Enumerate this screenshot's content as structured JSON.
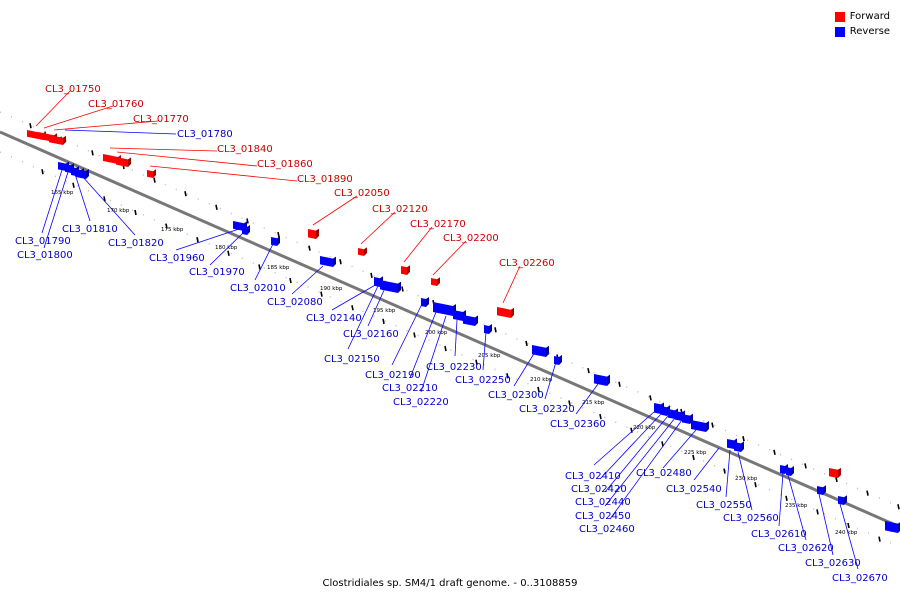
{
  "legend": {
    "forward": {
      "label": "Forward",
      "color": "#ff0000"
    },
    "reverse": {
      "label": "Reverse",
      "color": "#0000ff"
    }
  },
  "caption": "Clostridiales sp. SM4/1 draft genome. - 0..3108859",
  "ticks": [
    "165 kbp",
    "170 kbp",
    "175 kbp",
    "180 kbp",
    "185 kbp",
    "190 kbp",
    "195 kbp",
    "200 kbp",
    "205 kbp",
    "210 kbp",
    "215 kbp",
    "220 kbp",
    "225 kbp",
    "230 kbp",
    "235 kbp",
    "240 kbp"
  ],
  "forward_genes": [
    "CL3_01750",
    "CL3_01760",
    "CL3_01770",
    "CL3_01840",
    "CL3_01860",
    "CL3_01890",
    "CL3_02050",
    "CL3_02120",
    "CL3_02170",
    "CL3_02200",
    "CL3_02260"
  ],
  "reverse_genes": [
    "CL3_01780",
    "CL3_01790",
    "CL3_01800",
    "CL3_01810",
    "CL3_01820",
    "CL3_01960",
    "CL3_01970",
    "CL3_02010",
    "CL3_02080",
    "CL3_02140",
    "CL3_02150",
    "CL3_02160",
    "CL3_02190",
    "CL3_02210",
    "CL3_02220",
    "CL3_02230",
    "CL3_02250",
    "CL3_02300",
    "CL3_02320",
    "CL3_02360",
    "CL3_02410",
    "CL3_02420",
    "CL3_02440",
    "CL3_02450",
    "CL3_02460",
    "CL3_02480",
    "CL3_02540",
    "CL3_02550",
    "CL3_02560",
    "CL3_02610",
    "CL3_02620",
    "CL3_02630",
    "CL3_02670"
  ]
}
